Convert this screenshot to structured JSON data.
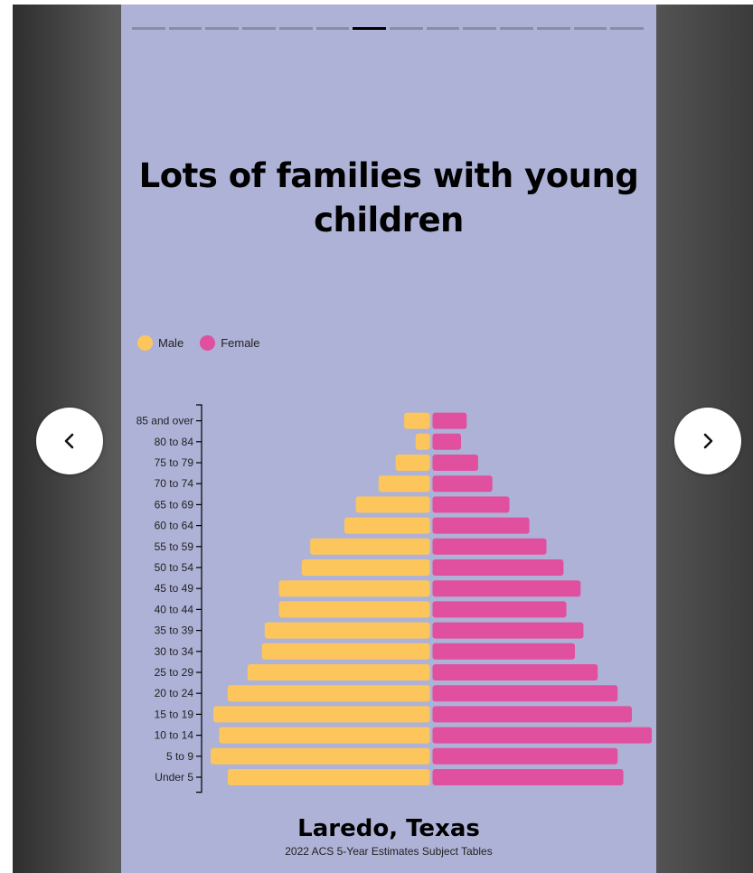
{
  "story": {
    "title": "Lots of families with young children",
    "progress_segments": 14,
    "active_segment": 6,
    "place": "Laredo, Texas",
    "source": "2022 ACS 5-Year Estimates Subject Tables"
  },
  "legend": {
    "male_label": "Male",
    "female_label": "Female"
  },
  "navigation": {
    "prev_icon": "chevron-left-icon",
    "next_icon": "chevron-right-icon"
  },
  "colors": {
    "background": "#aeb2d6",
    "male": "#fdc65c",
    "female": "#e0509f"
  },
  "chart_data": {
    "type": "bar",
    "orientation": "horizontal-population-pyramid",
    "categories": [
      "85 and over",
      "80 to 84",
      "75 to 79",
      "70 to 74",
      "65 to 69",
      "60 to 64",
      "55 to 59",
      "50 to 54",
      "45 to 49",
      "40 to 44",
      "35 to 39",
      "30 to 34",
      "25 to 29",
      "20 to 24",
      "15 to 19",
      "10 to 14",
      "5 to 9",
      "Under 5"
    ],
    "series": [
      {
        "name": "Male",
        "values": [
          0.9,
          0.5,
          1.2,
          1.8,
          2.6,
          3.0,
          4.2,
          4.5,
          5.3,
          5.3,
          5.8,
          5.9,
          6.4,
          7.1,
          7.6,
          7.4,
          7.7,
          7.1
        ]
      },
      {
        "name": "Female",
        "values": [
          1.2,
          1.0,
          1.6,
          2.1,
          2.7,
          3.4,
          4.0,
          4.6,
          5.2,
          4.7,
          5.3,
          5.0,
          5.8,
          6.5,
          7.0,
          7.7,
          6.5,
          6.7
        ]
      }
    ],
    "legend": "top-left",
    "grid": false
  }
}
